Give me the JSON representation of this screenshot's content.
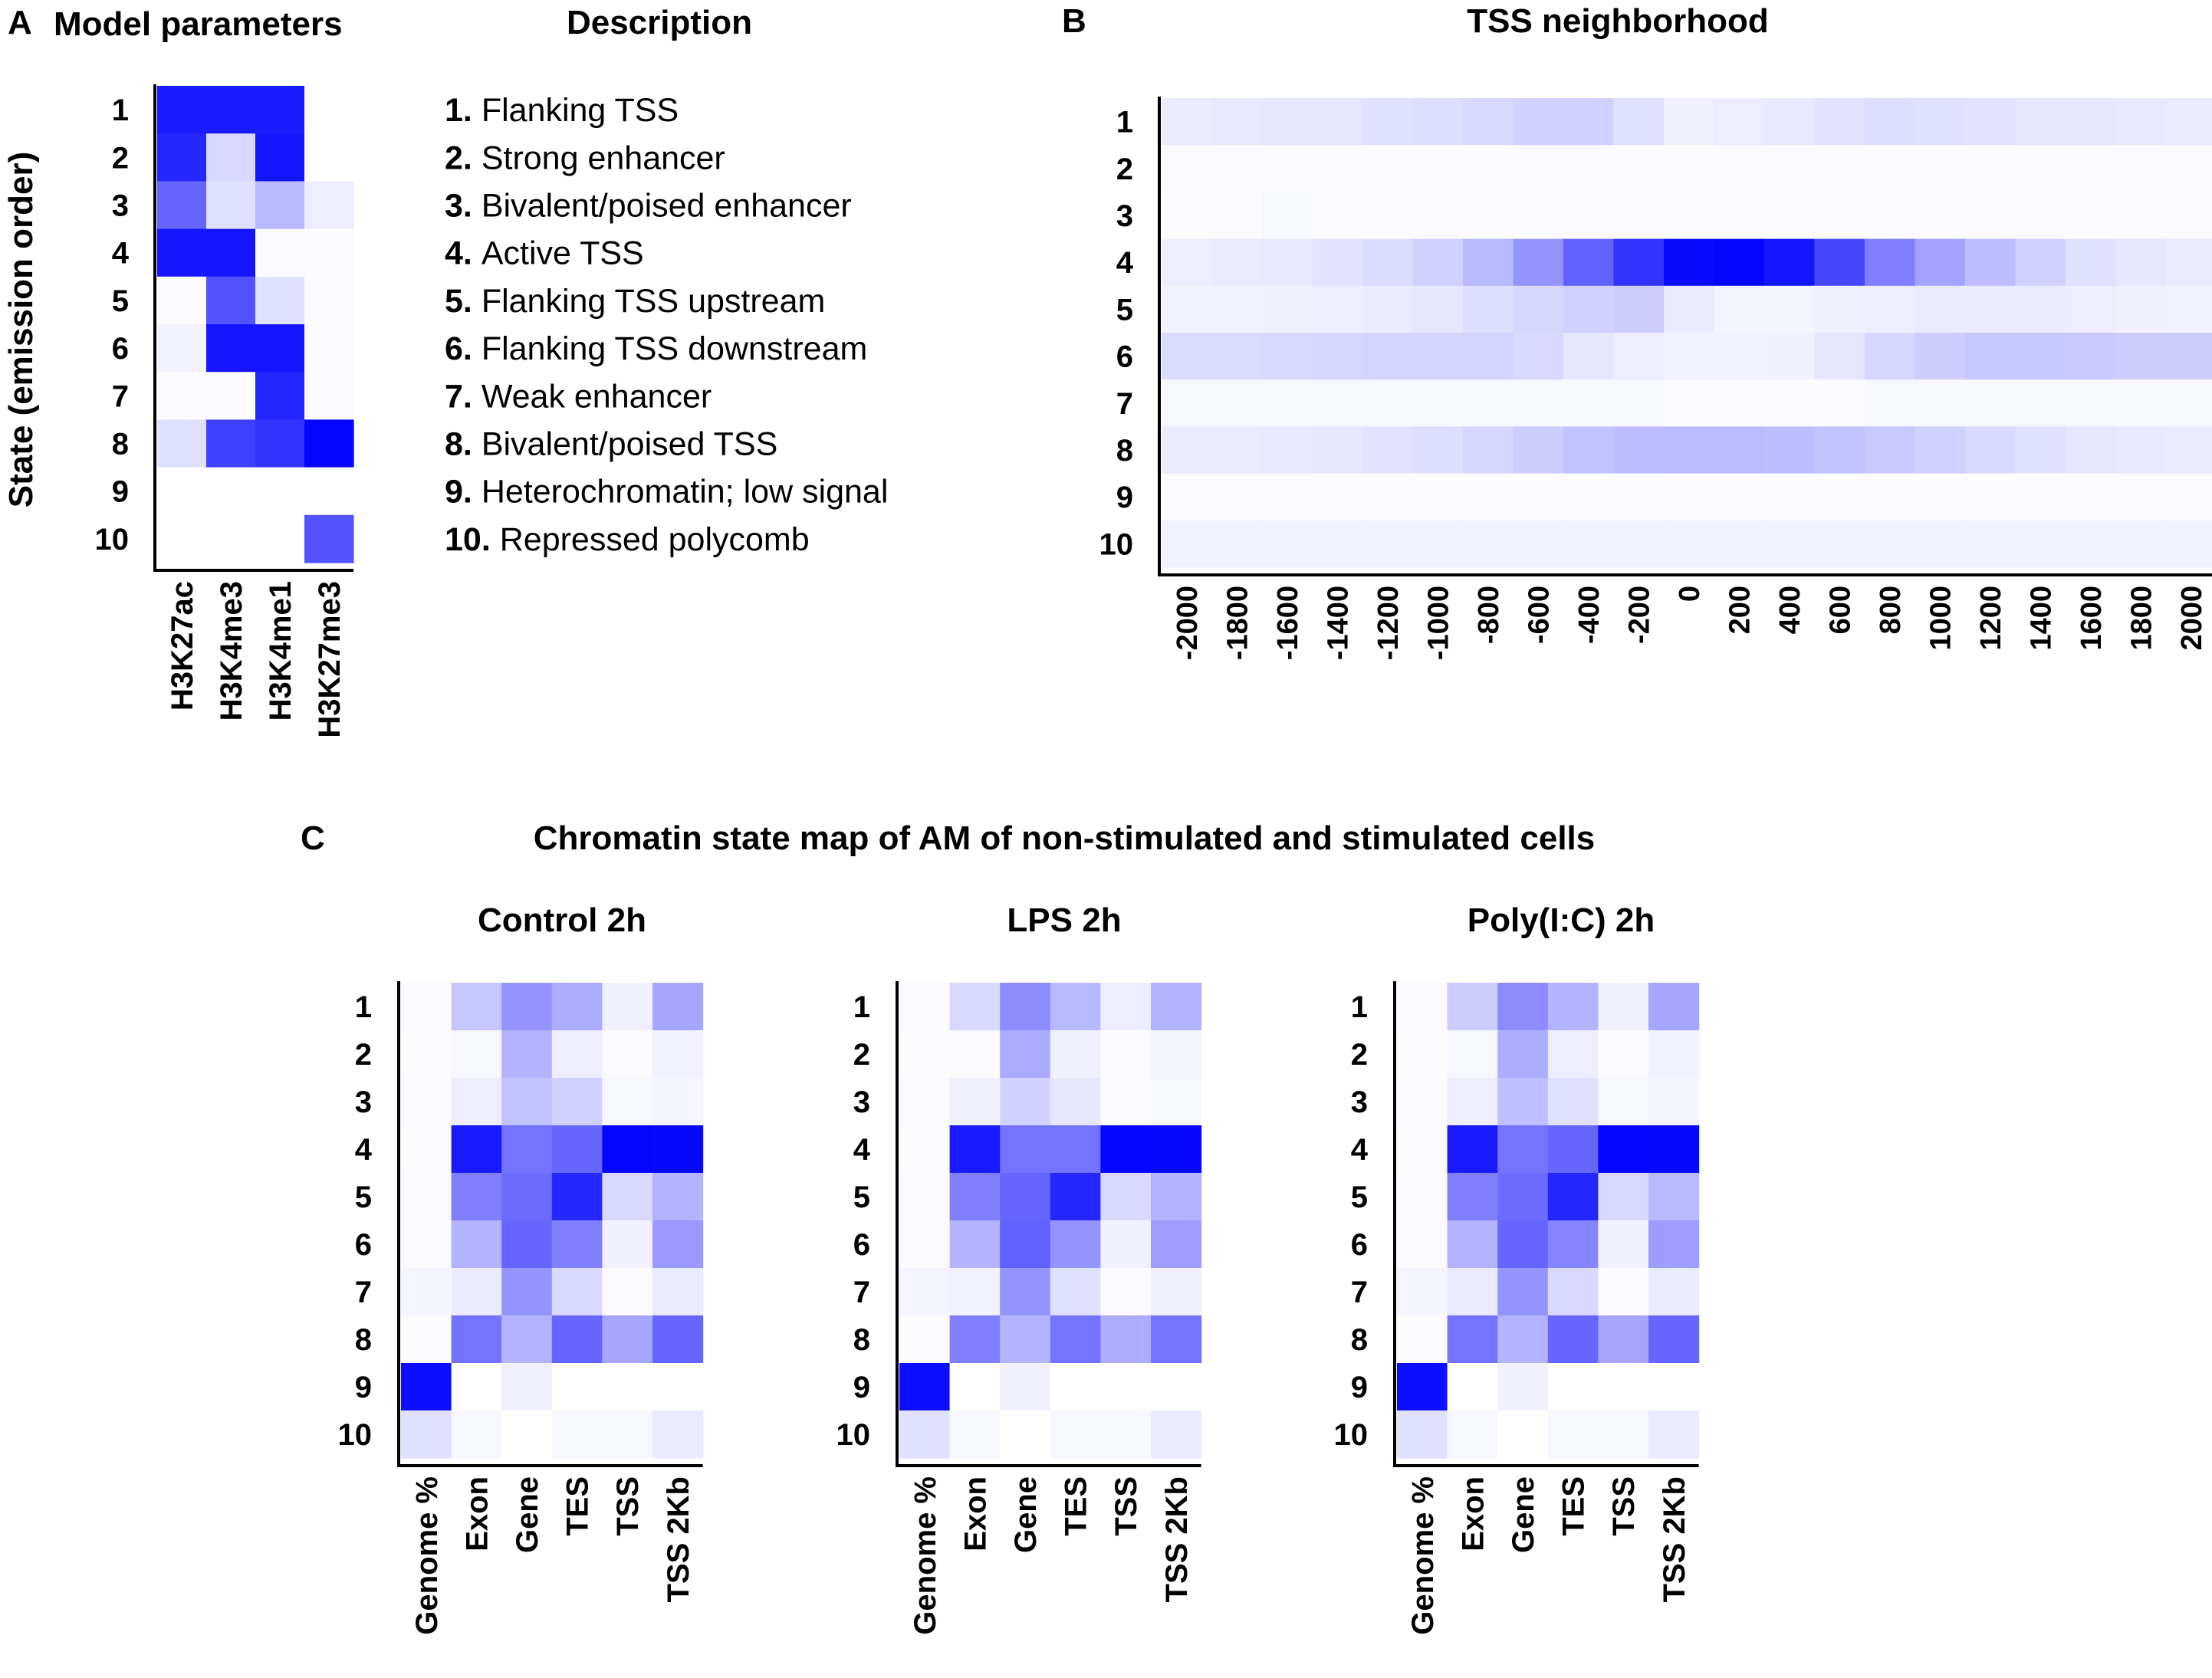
{
  "panel_letters": {
    "a": "A",
    "b": "B",
    "c": "C"
  },
  "panel_a": {
    "title": "Model parameters",
    "ylabel": "State (emission order)",
    "description_title": "Description"
  },
  "panel_b": {
    "title": "TSS neighborhood"
  },
  "panel_c": {
    "title": "Chromatin state map of AM of non-stimulated and stimulated cells"
  },
  "descriptions": [
    {
      "num": "1.",
      "text": "Flanking TSS"
    },
    {
      "num": "2.",
      "text": "Strong enhancer"
    },
    {
      "num": "3.",
      "text": "Bivalent/poised enhancer"
    },
    {
      "num": "4.",
      "text": "Active TSS"
    },
    {
      "num": "5.",
      "text": "Flanking TSS upstream"
    },
    {
      "num": "6.",
      "text": "Flanking TSS downstream"
    },
    {
      "num": "7.",
      "text": "Weak enhancer"
    },
    {
      "num": "8.",
      "text": "Bivalent/poised TSS"
    },
    {
      "num": "9.",
      "text": "Heterochromatin; low signal"
    },
    {
      "num": "10.",
      "text": "Repressed polycomb"
    }
  ],
  "colors": {
    "high": "#0000ff",
    "low": "#ffffff"
  },
  "chart_data": [
    {
      "type": "heatmap",
      "id": "model-parameters",
      "title": "Model parameters",
      "ylabel": "State (emission order)",
      "rows": [
        "1",
        "2",
        "3",
        "4",
        "5",
        "6",
        "7",
        "8",
        "9",
        "10"
      ],
      "columns": [
        "H3K27ac",
        "H3K4me3",
        "H3K4me1",
        "H3K27me3"
      ],
      "values": [
        [
          0.9,
          0.9,
          0.9,
          0.0
        ],
        [
          0.85,
          0.15,
          0.92,
          0.0
        ],
        [
          0.6,
          0.12,
          0.28,
          0.07
        ],
        [
          0.92,
          0.92,
          0.02,
          0.01
        ],
        [
          0.01,
          0.68,
          0.12,
          0.01
        ],
        [
          0.05,
          0.92,
          0.92,
          0.01
        ],
        [
          0.01,
          0.01,
          0.85,
          0.01
        ],
        [
          0.12,
          0.75,
          0.8,
          0.98
        ],
        [
          0.0,
          0.0,
          0.0,
          0.0
        ],
        [
          0.0,
          0.0,
          0.0,
          0.68
        ]
      ]
    },
    {
      "type": "heatmap",
      "id": "tss-neighborhood",
      "title": "TSS neighborhood",
      "rows": [
        "1",
        "2",
        "3",
        "4",
        "5",
        "6",
        "7",
        "8",
        "9",
        "10"
      ],
      "columns": [
        "-2000",
        "-1800",
        "-1600",
        "-1400",
        "-1200",
        "-1000",
        "-800",
        "-600",
        "-400",
        "-200",
        "0",
        "200",
        "400",
        "600",
        "800",
        "1000",
        "1200",
        "1400",
        "1600",
        "1800",
        "2000"
      ],
      "values": [
        [
          0.08,
          0.09,
          0.1,
          0.1,
          0.12,
          0.13,
          0.15,
          0.18,
          0.18,
          0.12,
          0.06,
          0.07,
          0.09,
          0.11,
          0.13,
          0.12,
          0.11,
          0.1,
          0.1,
          0.09,
          0.08
        ],
        [
          0.02,
          0.02,
          0.02,
          0.02,
          0.02,
          0.02,
          0.02,
          0.02,
          0.02,
          0.02,
          0.02,
          0.02,
          0.02,
          0.02,
          0.02,
          0.02,
          0.02,
          0.02,
          0.02,
          0.02,
          0.02
        ],
        [
          0.01,
          0.02,
          0.03,
          0.02,
          0.02,
          0.02,
          0.02,
          0.02,
          0.02,
          0.02,
          0.02,
          0.02,
          0.02,
          0.02,
          0.02,
          0.02,
          0.02,
          0.02,
          0.02,
          0.02,
          0.02
        ],
        [
          0.07,
          0.08,
          0.09,
          0.11,
          0.14,
          0.18,
          0.28,
          0.42,
          0.62,
          0.8,
          0.96,
          0.98,
          0.92,
          0.72,
          0.5,
          0.36,
          0.26,
          0.18,
          0.12,
          0.1,
          0.08
        ],
        [
          0.05,
          0.05,
          0.06,
          0.07,
          0.08,
          0.1,
          0.13,
          0.16,
          0.18,
          0.2,
          0.08,
          0.04,
          0.04,
          0.06,
          0.07,
          0.08,
          0.08,
          0.08,
          0.07,
          0.06,
          0.05
        ],
        [
          0.14,
          0.14,
          0.15,
          0.16,
          0.17,
          0.17,
          0.17,
          0.15,
          0.1,
          0.07,
          0.05,
          0.05,
          0.06,
          0.1,
          0.16,
          0.2,
          0.22,
          0.22,
          0.21,
          0.2,
          0.2
        ],
        [
          0.03,
          0.03,
          0.03,
          0.03,
          0.03,
          0.03,
          0.03,
          0.03,
          0.03,
          0.03,
          0.02,
          0.02,
          0.02,
          0.02,
          0.03,
          0.03,
          0.03,
          0.03,
          0.03,
          0.03,
          0.03
        ],
        [
          0.08,
          0.08,
          0.09,
          0.1,
          0.11,
          0.13,
          0.16,
          0.2,
          0.24,
          0.26,
          0.27,
          0.27,
          0.26,
          0.24,
          0.21,
          0.18,
          0.15,
          0.12,
          0.1,
          0.09,
          0.08
        ],
        [
          0.01,
          0.01,
          0.01,
          0.01,
          0.01,
          0.01,
          0.01,
          0.01,
          0.01,
          0.01,
          0.01,
          0.01,
          0.01,
          0.01,
          0.01,
          0.01,
          0.01,
          0.01,
          0.01,
          0.01,
          0.01
        ],
        [
          0.05,
          0.05,
          0.05,
          0.05,
          0.05,
          0.05,
          0.05,
          0.05,
          0.05,
          0.05,
          0.05,
          0.05,
          0.05,
          0.05,
          0.05,
          0.05,
          0.05,
          0.05,
          0.05,
          0.05,
          0.05
        ]
      ]
    },
    {
      "type": "heatmap",
      "id": "control-2h",
      "title": "Control 2h",
      "rows": [
        "1",
        "2",
        "3",
        "4",
        "5",
        "6",
        "7",
        "8",
        "9",
        "10"
      ],
      "columns": [
        "Genome %",
        "Exon",
        "Gene",
        "TES",
        "TSS",
        "TSS 2Kb"
      ],
      "values": [
        [
          0.02,
          0.22,
          0.42,
          0.32,
          0.06,
          0.35
        ],
        [
          0.01,
          0.03,
          0.3,
          0.07,
          0.02,
          0.05
        ],
        [
          0.02,
          0.07,
          0.24,
          0.18,
          0.03,
          0.04
        ],
        [
          0.01,
          0.9,
          0.55,
          0.6,
          0.98,
          0.97
        ],
        [
          0.02,
          0.5,
          0.58,
          0.85,
          0.15,
          0.3
        ],
        [
          0.02,
          0.3,
          0.6,
          0.5,
          0.06,
          0.4
        ],
        [
          0.04,
          0.08,
          0.42,
          0.15,
          0.02,
          0.08
        ],
        [
          0.01,
          0.55,
          0.3,
          0.6,
          0.35,
          0.6
        ],
        [
          0.95,
          0.0,
          0.06,
          0.0,
          0.0,
          0.0
        ],
        [
          0.12,
          0.03,
          0.0,
          0.03,
          0.03,
          0.08
        ]
      ]
    },
    {
      "type": "heatmap",
      "id": "lps-2h",
      "title": "LPS 2h",
      "rows": [
        "1",
        "2",
        "3",
        "4",
        "5",
        "6",
        "7",
        "8",
        "9",
        "10"
      ],
      "columns": [
        "Genome %",
        "Exon",
        "Gene",
        "TES",
        "TSS",
        "TSS 2Kb"
      ],
      "values": [
        [
          0.02,
          0.15,
          0.45,
          0.28,
          0.07,
          0.3
        ],
        [
          0.01,
          0.02,
          0.33,
          0.06,
          0.02,
          0.04
        ],
        [
          0.02,
          0.06,
          0.18,
          0.1,
          0.02,
          0.03
        ],
        [
          0.01,
          0.9,
          0.55,
          0.55,
          0.98,
          0.97
        ],
        [
          0.02,
          0.5,
          0.6,
          0.85,
          0.15,
          0.3
        ],
        [
          0.02,
          0.3,
          0.62,
          0.42,
          0.06,
          0.38
        ],
        [
          0.04,
          0.05,
          0.42,
          0.12,
          0.02,
          0.06
        ],
        [
          0.01,
          0.5,
          0.3,
          0.55,
          0.32,
          0.55
        ],
        [
          0.95,
          0.0,
          0.06,
          0.0,
          0.0,
          0.0
        ],
        [
          0.12,
          0.03,
          0.0,
          0.03,
          0.03,
          0.08
        ]
      ]
    },
    {
      "type": "heatmap",
      "id": "polyic-2h",
      "title": "Poly(I:C) 2h",
      "rows": [
        "1",
        "2",
        "3",
        "4",
        "5",
        "6",
        "7",
        "8",
        "9",
        "10"
      ],
      "columns": [
        "Genome %",
        "Exon",
        "Gene",
        "TES",
        "TSS",
        "TSS 2Kb"
      ],
      "values": [
        [
          0.02,
          0.2,
          0.45,
          0.3,
          0.06,
          0.35
        ],
        [
          0.01,
          0.03,
          0.32,
          0.07,
          0.02,
          0.05
        ],
        [
          0.02,
          0.07,
          0.25,
          0.12,
          0.03,
          0.04
        ],
        [
          0.01,
          0.9,
          0.55,
          0.6,
          0.98,
          0.97
        ],
        [
          0.02,
          0.5,
          0.58,
          0.85,
          0.15,
          0.28
        ],
        [
          0.02,
          0.3,
          0.6,
          0.48,
          0.06,
          0.38
        ],
        [
          0.04,
          0.08,
          0.42,
          0.15,
          0.02,
          0.08
        ],
        [
          0.01,
          0.55,
          0.3,
          0.6,
          0.35,
          0.6
        ],
        [
          0.95,
          0.0,
          0.06,
          0.0,
          0.0,
          0.0
        ],
        [
          0.12,
          0.03,
          0.0,
          0.03,
          0.03,
          0.08
        ]
      ]
    }
  ]
}
